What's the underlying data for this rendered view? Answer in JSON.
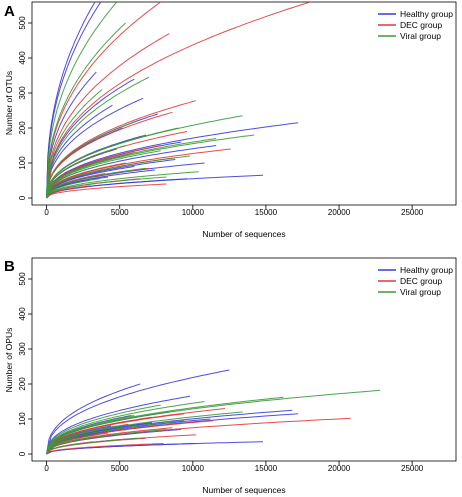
{
  "chart_data": [
    {
      "panel_label": "A",
      "type": "line",
      "xlabel": "Number of sequences",
      "ylabel": "Number of OTUs",
      "xlim": [
        -1000,
        28000
      ],
      "ylim": [
        -20,
        560
      ],
      "xticks": [
        "0",
        "5000",
        "10000",
        "15000",
        "20000",
        "25000"
      ],
      "yticks": [
        "0",
        "100",
        "200",
        "300",
        "400",
        "500"
      ],
      "legend_position": "top-right",
      "legend": [
        {
          "name": "Healthy group",
          "color": "#3b3bd6"
        },
        {
          "name": "DEC group",
          "color": "#e03a3a"
        },
        {
          "name": "Viral group",
          "color": "#3a9a3a"
        }
      ],
      "series": [
        {
          "group": "Healthy group",
          "curves": [
            {
              "x_max": 3300,
              "y_end": 560
            },
            {
              "x_max": 3700,
              "y_end": 560
            },
            {
              "x_max": 3400,
              "y_end": 360
            },
            {
              "x_max": 6000,
              "y_end": 340
            },
            {
              "x_max": 6600,
              "y_end": 285
            },
            {
              "x_max": 4500,
              "y_end": 265
            },
            {
              "x_max": 7600,
              "y_end": 240
            },
            {
              "x_max": 17200,
              "y_end": 215
            },
            {
              "x_max": 5200,
              "y_end": 200
            },
            {
              "x_max": 6800,
              "y_end": 180
            },
            {
              "x_max": 9200,
              "y_end": 160
            },
            {
              "x_max": 11600,
              "y_end": 150
            },
            {
              "x_max": 4800,
              "y_end": 140
            },
            {
              "x_max": 5600,
              "y_end": 125
            },
            {
              "x_max": 8800,
              "y_end": 110
            },
            {
              "x_max": 10800,
              "y_end": 100
            },
            {
              "x_max": 6000,
              "y_end": 90
            },
            {
              "x_max": 14800,
              "y_end": 65
            },
            {
              "x_max": 7400,
              "y_end": 80
            },
            {
              "x_max": 4200,
              "y_end": 60
            },
            {
              "x_max": 9600,
              "y_end": 55
            },
            {
              "x_max": 2800,
              "y_end": 50
            }
          ]
        },
        {
          "group": "DEC group",
          "curves": [
            {
              "x_max": 7800,
              "y_end": 560
            },
            {
              "x_max": 18800,
              "y_end": 570
            },
            {
              "x_max": 8400,
              "y_end": 470
            },
            {
              "x_max": 10200,
              "y_end": 278
            },
            {
              "x_max": 8600,
              "y_end": 245
            },
            {
              "x_max": 9600,
              "y_end": 190
            },
            {
              "x_max": 6600,
              "y_end": 175
            },
            {
              "x_max": 7800,
              "y_end": 150
            },
            {
              "x_max": 12600,
              "y_end": 140
            },
            {
              "x_max": 6000,
              "y_end": 130
            },
            {
              "x_max": 8800,
              "y_end": 115
            },
            {
              "x_max": 5400,
              "y_end": 100
            },
            {
              "x_max": 7000,
              "y_end": 85
            },
            {
              "x_max": 4000,
              "y_end": 70
            },
            {
              "x_max": 6400,
              "y_end": 55
            },
            {
              "x_max": 8200,
              "y_end": 40
            },
            {
              "x_max": 3000,
              "y_end": 35
            }
          ]
        },
        {
          "group": "Viral group",
          "curves": [
            {
              "x_max": 4800,
              "y_end": 560
            },
            {
              "x_max": 5400,
              "y_end": 500
            },
            {
              "x_max": 3800,
              "y_end": 310
            },
            {
              "x_max": 7000,
              "y_end": 345
            },
            {
              "x_max": 13400,
              "y_end": 235
            },
            {
              "x_max": 14200,
              "y_end": 180
            },
            {
              "x_max": 6200,
              "y_end": 220
            },
            {
              "x_max": 9000,
              "y_end": 200
            },
            {
              "x_max": 11600,
              "y_end": 170
            },
            {
              "x_max": 5400,
              "y_end": 150
            },
            {
              "x_max": 7800,
              "y_end": 135
            },
            {
              "x_max": 9800,
              "y_end": 120
            },
            {
              "x_max": 4400,
              "y_end": 100
            },
            {
              "x_max": 6800,
              "y_end": 85
            },
            {
              "x_max": 10400,
              "y_end": 75
            },
            {
              "x_max": 3600,
              "y_end": 55
            },
            {
              "x_max": 8200,
              "y_end": 60
            }
          ]
        }
      ]
    },
    {
      "panel_label": "B",
      "type": "line",
      "xlabel": "Number of sequences",
      "ylabel": "Number of OPUs",
      "xlim": [
        -1000,
        28000
      ],
      "ylim": [
        -20,
        560
      ],
      "xticks": [
        "0",
        "5000",
        "10000",
        "15000",
        "20000",
        "25000"
      ],
      "yticks": [
        "0",
        "100",
        "200",
        "300",
        "400",
        "500"
      ],
      "legend_position": "top-right",
      "legend": [
        {
          "name": "Healthy group",
          "color": "#3b3bd6"
        },
        {
          "name": "DEC group",
          "color": "#e03a3a"
        },
        {
          "name": "Viral group",
          "color": "#3a9a3a"
        }
      ],
      "series": [
        {
          "group": "Healthy group",
          "curves": [
            {
              "x_max": 12500,
              "y_end": 240
            },
            {
              "x_max": 6400,
              "y_end": 200
            },
            {
              "x_max": 9800,
              "y_end": 165
            },
            {
              "x_max": 16800,
              "y_end": 125
            },
            {
              "x_max": 17200,
              "y_end": 115
            },
            {
              "x_max": 8400,
              "y_end": 120
            },
            {
              "x_max": 5800,
              "y_end": 110
            },
            {
              "x_max": 11200,
              "y_end": 100
            },
            {
              "x_max": 7200,
              "y_end": 90
            },
            {
              "x_max": 4400,
              "y_end": 80
            },
            {
              "x_max": 9200,
              "y_end": 70
            },
            {
              "x_max": 14800,
              "y_end": 35
            },
            {
              "x_max": 3600,
              "y_end": 60
            },
            {
              "x_max": 6200,
              "y_end": 45
            },
            {
              "x_max": 10200,
              "y_end": 30
            }
          ]
        },
        {
          "group": "DEC group",
          "curves": [
            {
              "x_max": 20800,
              "y_end": 102
            },
            {
              "x_max": 12200,
              "y_end": 130
            },
            {
              "x_max": 9400,
              "y_end": 115
            },
            {
              "x_max": 7200,
              "y_end": 105
            },
            {
              "x_max": 11400,
              "y_end": 95
            },
            {
              "x_max": 5600,
              "y_end": 85
            },
            {
              "x_max": 8600,
              "y_end": 75
            },
            {
              "x_max": 4200,
              "y_end": 60
            },
            {
              "x_max": 10200,
              "y_end": 55
            },
            {
              "x_max": 6800,
              "y_end": 45
            },
            {
              "x_max": 3200,
              "y_end": 35
            },
            {
              "x_max": 8000,
              "y_end": 30
            }
          ]
        },
        {
          "group": "Viral group",
          "curves": [
            {
              "x_max": 22800,
              "y_end": 182
            },
            {
              "x_max": 16200,
              "y_end": 162
            },
            {
              "x_max": 10800,
              "y_end": 150
            },
            {
              "x_max": 7800,
              "y_end": 140
            },
            {
              "x_max": 13400,
              "y_end": 120
            },
            {
              "x_max": 6000,
              "y_end": 110
            },
            {
              "x_max": 9400,
              "y_end": 95
            },
            {
              "x_max": 4800,
              "y_end": 80
            },
            {
              "x_max": 8200,
              "y_end": 70
            },
            {
              "x_max": 3400,
              "y_end": 55
            },
            {
              "x_max": 6400,
              "y_end": 45
            }
          ]
        }
      ]
    }
  ]
}
